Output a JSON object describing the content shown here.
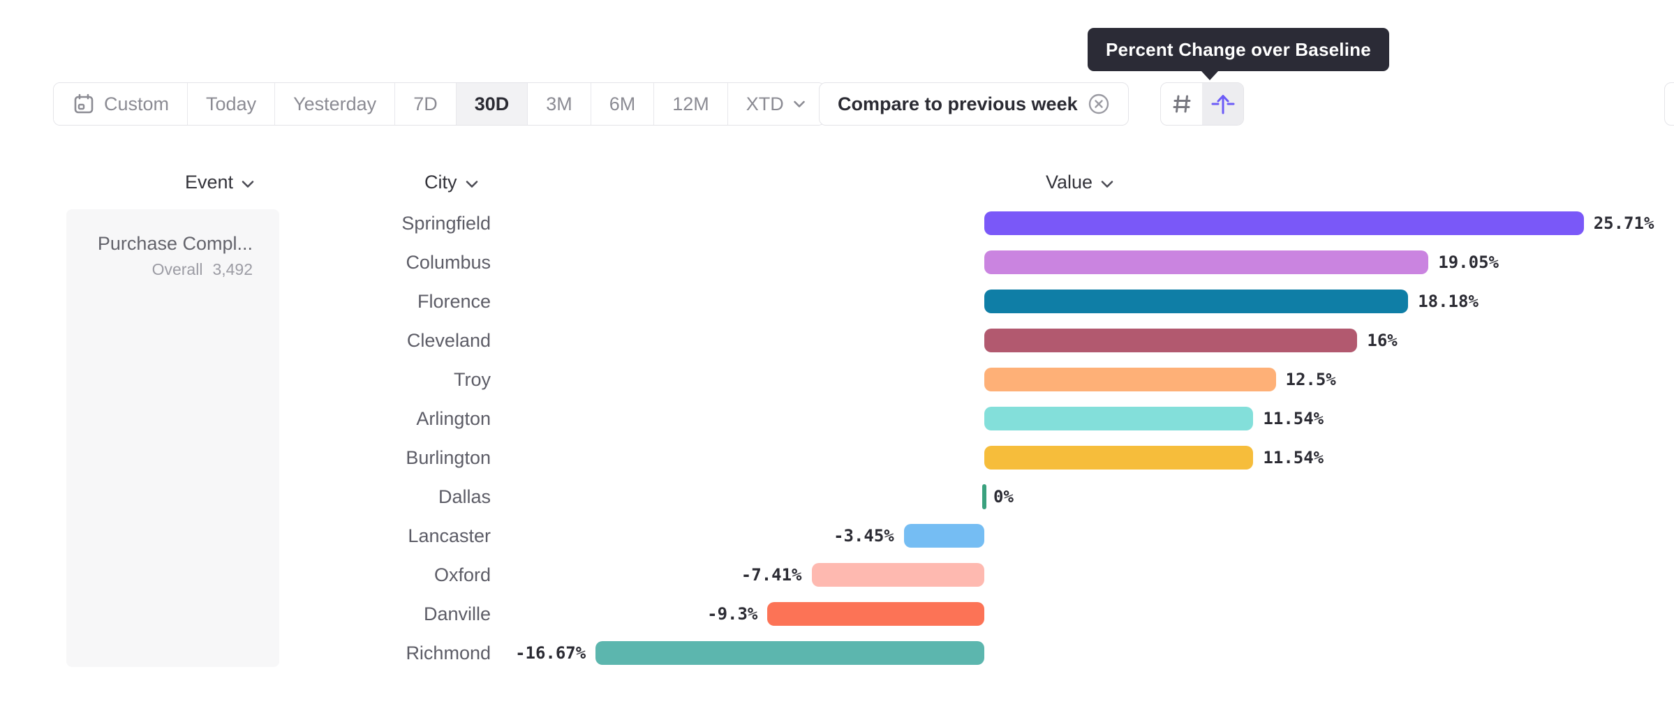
{
  "tooltip": {
    "text": "Percent Change over Baseline"
  },
  "toolbar": {
    "date_ranges": [
      {
        "label": "Custom",
        "icon": "calendar",
        "selected": false
      },
      {
        "label": "Today",
        "selected": false
      },
      {
        "label": "Yesterday",
        "selected": false
      },
      {
        "label": "7D",
        "selected": false
      },
      {
        "label": "30D",
        "selected": true
      },
      {
        "label": "3M",
        "selected": false
      },
      {
        "label": "6M",
        "selected": false
      },
      {
        "label": "12M",
        "selected": false
      },
      {
        "label": "XTD",
        "chevron": true,
        "selected": false
      }
    ],
    "compare": {
      "label": "Compare to previous week",
      "icon": "close-circle"
    },
    "view_toggles": [
      {
        "name": "grid-view",
        "icon": "hash",
        "selected": false
      },
      {
        "name": "percent-change-view",
        "icon": "arrow-up-over-baseline",
        "selected": true
      }
    ]
  },
  "columns": {
    "event": "Event",
    "city": "City",
    "value": "Value"
  },
  "event_panel": {
    "title": "Purchase Compl...",
    "series_label": "Overall",
    "series_value": "3,492"
  },
  "chart_data": {
    "type": "bar",
    "orientation": "horizontal",
    "title": "Percent Change over Baseline",
    "value_unit": "%",
    "categories": [
      "Springfield",
      "Columbus",
      "Florence",
      "Cleveland",
      "Troy",
      "Arlington",
      "Burlington",
      "Dallas",
      "Lancaster",
      "Oxford",
      "Danville",
      "Richmond"
    ],
    "values": [
      25.71,
      19.05,
      18.18,
      16,
      12.5,
      11.54,
      11.54,
      0,
      -3.45,
      -7.41,
      -9.3,
      -16.67
    ],
    "value_labels": [
      "25.71%",
      "19.05%",
      "18.18%",
      "16%",
      "12.5%",
      "11.54%",
      "11.54%",
      "0%",
      "-3.45%",
      "-7.41%",
      "-9.3%",
      "-16.67%"
    ],
    "bar_colors": [
      "#7a58f8",
      "#ca84e0",
      "#0f7ea6",
      "#b2596f",
      "#feb077",
      "#83dfda",
      "#f6bd3b",
      "#3aa17e",
      "#75bdf3",
      "#feb9b0",
      "#fc7356",
      "#5cb6ae"
    ],
    "xlim": [
      -18,
      29.6
    ],
    "grid": false,
    "legend": false
  },
  "colors": {
    "accent_purple": "#6c5bf7",
    "tooltip_bg": "#2b2b36",
    "selected_bg": "#f2f2f4",
    "border": "#e4e4e8",
    "zero_baseline_green": "#3aa17e",
    "icon_gray": "#77777f"
  }
}
